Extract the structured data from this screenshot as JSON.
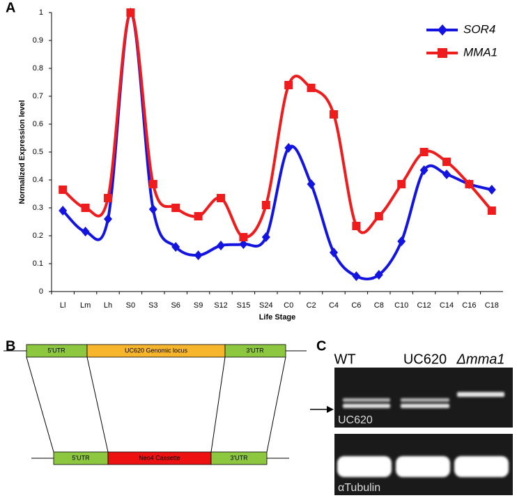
{
  "chart_data": {
    "type": "line",
    "xlabel": "Life Stage",
    "ylabel": "Normalized Expression level",
    "categories": [
      "Ll",
      "Lm",
      "Lh",
      "S0",
      "S3",
      "S6",
      "S9",
      "S12",
      "S15",
      "S24",
      "C0",
      "C2",
      "C4",
      "C6",
      "C8",
      "C10",
      "C12",
      "C14",
      "C16",
      "C18"
    ],
    "series": [
      {
        "name": "SOR4",
        "color": "#1414e0",
        "marker": "diamond",
        "values": [
          0.29,
          0.215,
          0.26,
          1.0,
          0.295,
          0.16,
          0.13,
          0.165,
          0.17,
          0.195,
          0.515,
          0.385,
          0.14,
          0.055,
          0.06,
          0.18,
          0.435,
          0.42,
          0.385,
          0.365
        ]
      },
      {
        "name": "MMA1",
        "color": "#ee1c1c",
        "marker": "square",
        "values": [
          0.365,
          0.3,
          0.335,
          1.0,
          0.385,
          0.3,
          0.27,
          0.335,
          0.195,
          0.31,
          0.74,
          0.73,
          0.635,
          0.235,
          0.27,
          0.385,
          0.5,
          0.465,
          0.385,
          0.29
        ]
      }
    ],
    "ylim": [
      0,
      1
    ],
    "yticks": [
      0,
      0.1,
      0.2,
      0.3,
      0.4,
      0.5,
      0.6,
      0.7,
      0.8,
      0.9,
      1
    ],
    "grid": false,
    "legend": "top-right"
  },
  "panels": {
    "a": "A",
    "b": "B",
    "c": "C"
  },
  "diagram": {
    "top": [
      "5'UTR",
      "UC620 Genomic locus",
      "3'UTR"
    ],
    "bottom": [
      "5'UTR",
      "Neo4 Cassette",
      "3'UTR"
    ]
  },
  "gel": {
    "lanes": [
      "WT",
      "UC620",
      "Δmma1"
    ],
    "blots": [
      "UC620",
      "αTubulin"
    ]
  }
}
